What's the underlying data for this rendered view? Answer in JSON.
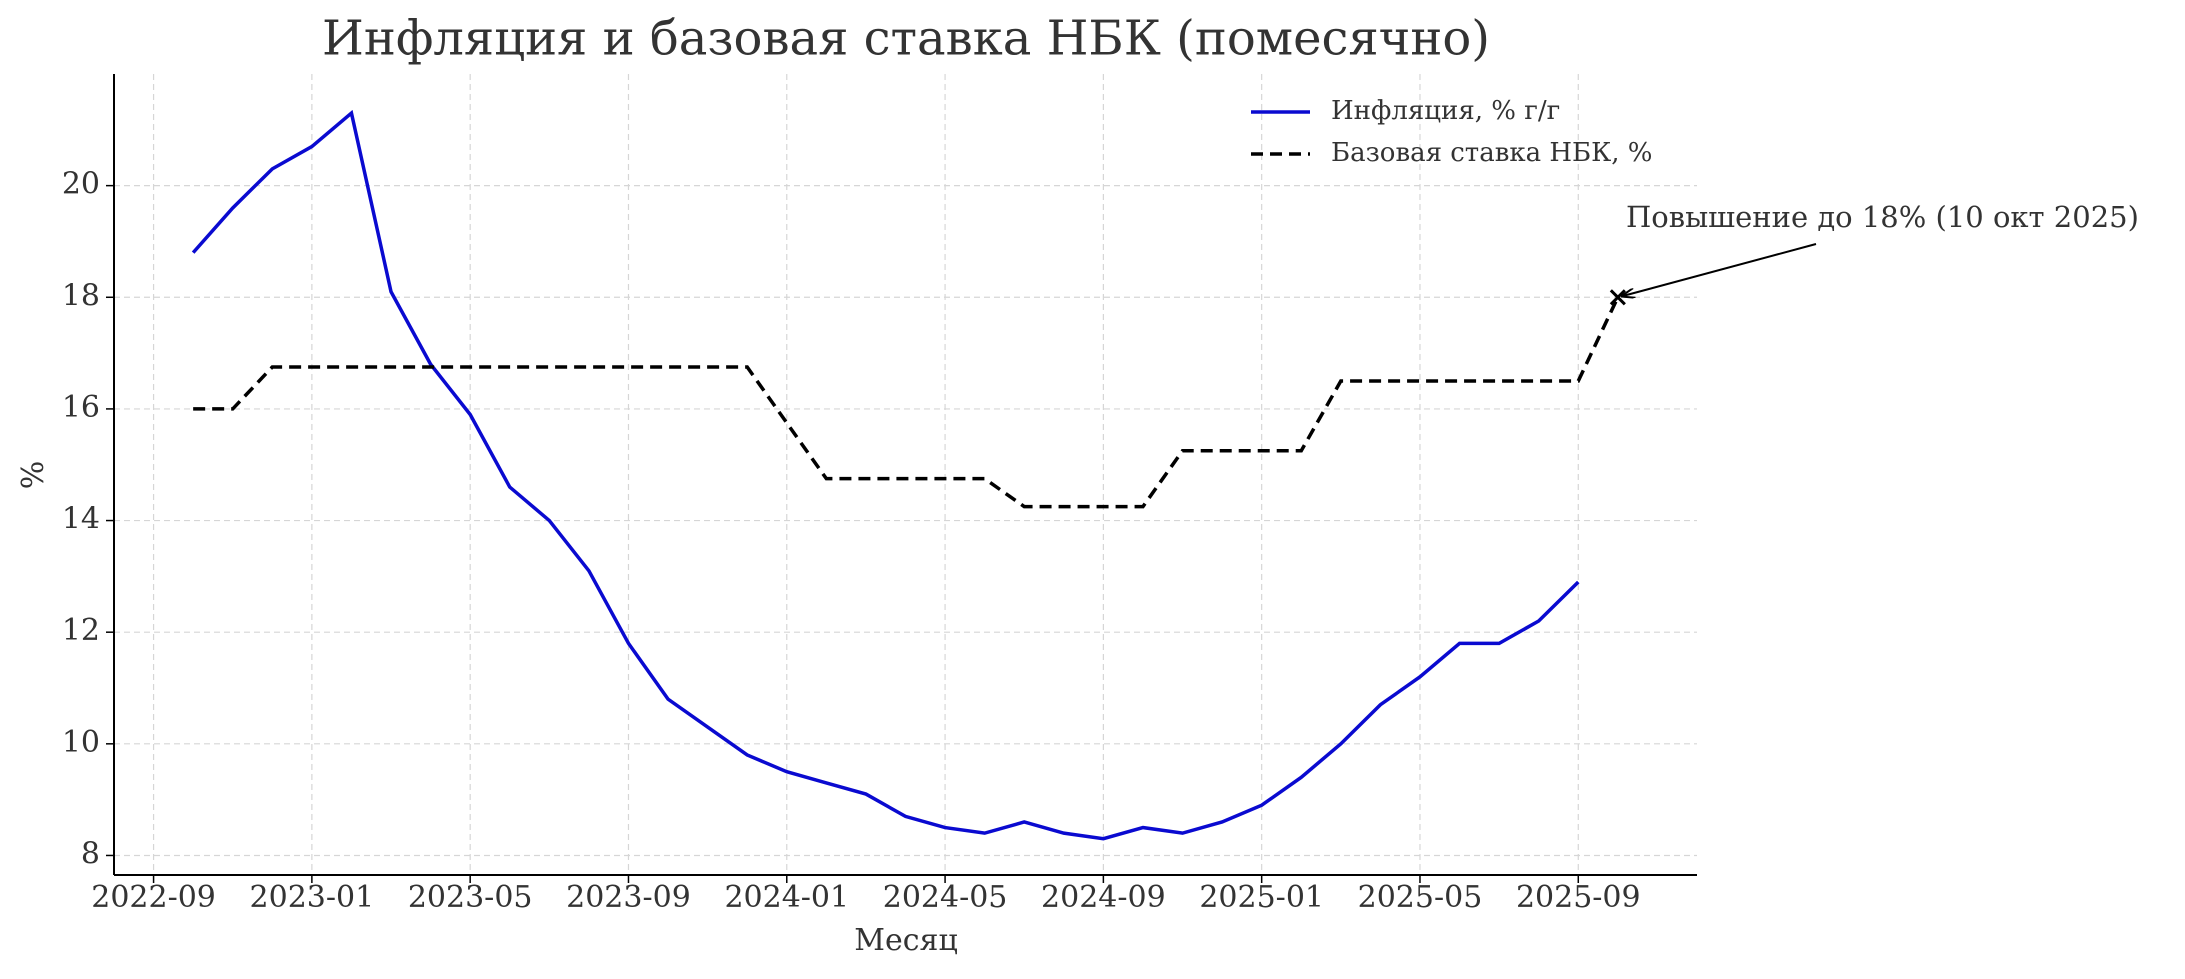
{
  "chart_data": {
    "type": "line",
    "title": "Инфляция и базовая ставка НБК (помесячно)",
    "x_label": "Месяц",
    "y_label": "%",
    "x": [
      "2022-10",
      "2022-11",
      "2022-12",
      "2023-01",
      "2023-02",
      "2023-03",
      "2023-04",
      "2023-05",
      "2023-06",
      "2023-07",
      "2023-08",
      "2023-09",
      "2023-10",
      "2023-11",
      "2023-12",
      "2024-01",
      "2024-02",
      "2024-03",
      "2024-04",
      "2024-05",
      "2024-06",
      "2024-07",
      "2024-08",
      "2024-09",
      "2024-10",
      "2024-11",
      "2024-12",
      "2025-01",
      "2025-02",
      "2025-03",
      "2025-04",
      "2025-05",
      "2025-06",
      "2025-07",
      "2025-08",
      "2025-09",
      "2025-10"
    ],
    "series": [
      {
        "name": "Инфляция, % г/г",
        "color": "#0a0ad0",
        "style": "solid",
        "values": [
          18.8,
          19.6,
          20.3,
          20.7,
          21.3,
          18.1,
          16.8,
          15.9,
          14.6,
          14.0,
          13.1,
          11.8,
          10.8,
          10.3,
          9.8,
          9.5,
          9.3,
          9.1,
          8.7,
          8.5,
          8.4,
          8.6,
          8.4,
          8.3,
          8.5,
          8.4,
          8.6,
          8.9,
          9.4,
          10.0,
          10.7,
          11.2,
          11.8,
          11.8,
          12.2,
          12.9,
          null
        ]
      },
      {
        "name": "Базовая ставка НБК, %",
        "color": "#000000",
        "style": "dashed",
        "values": [
          16,
          16,
          16.75,
          16.75,
          16.75,
          16.75,
          16.75,
          16.75,
          16.75,
          16.75,
          16.75,
          16.75,
          16.75,
          16.75,
          16.75,
          15.75,
          14.75,
          14.75,
          14.75,
          14.75,
          14.75,
          14.25,
          14.25,
          14.25,
          14.25,
          15.25,
          15.25,
          15.25,
          15.25,
          16.5,
          16.5,
          16.5,
          16.5,
          16.5,
          16.5,
          16.5,
          18
        ]
      }
    ],
    "annotation": {
      "text": "Повышение до 18% (10 окт 2025)",
      "x": "2025-10",
      "y": 18
    },
    "xlim": [
      "2022-08",
      "2025-12"
    ],
    "xticks": [
      "2022-09",
      "2023-01",
      "2023-05",
      "2023-09",
      "2024-01",
      "2024-05",
      "2024-09",
      "2025-01",
      "2025-05",
      "2025-09"
    ],
    "ylim": [
      7.65,
      22
    ],
    "yticks": [
      8,
      10,
      12,
      14,
      16,
      18,
      20
    ],
    "grid": true,
    "legend": "upper right"
  }
}
